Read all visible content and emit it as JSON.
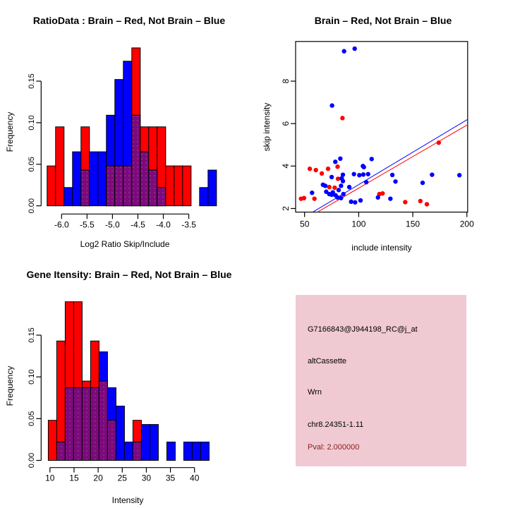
{
  "colors": {
    "red": "#ff0000",
    "blue": "#0000ff",
    "overlap_purple": "#7d0a7d",
    "overlap_dot": "#9b4f96",
    "axis_black": "#000000",
    "pval_darkred": "#8e1b1b",
    "info_bg_pink": "#f7b2c1",
    "info_bg_light": "#e9e1e5"
  },
  "chart_data": [
    {
      "id": "ratio_hist",
      "type": "bar",
      "subtype": "overlaid-histogram",
      "title": "RatioData : Brain – Red, Not Brain – Blue",
      "xlabel": "Log2 Ratio Skip/Include",
      "ylabel": "Frequency",
      "x_ticks": [
        -6.0,
        -5.5,
        -5.0,
        -4.5,
        -4.0,
        -3.5
      ],
      "x_tick_labels": [
        "-6.0",
        "-5.5",
        "-5.0",
        "-4.5",
        "-4.0",
        "-3.5"
      ],
      "y_ticks": [
        0,
        0.05,
        0.1,
        0.15
      ],
      "y_tick_labels": [
        "0.00",
        "0.05",
        "0.10",
        "0.15"
      ],
      "ylim": [
        0,
        0.19
      ],
      "grid": false,
      "legend": "none",
      "bin_start": -6.285,
      "bin_width": 0.1665,
      "series": [
        {
          "name": "Brain (red)",
          "color": "red",
          "values": [
            0.048,
            0.095,
            0,
            0,
            0.095,
            0,
            0,
            0.048,
            0.048,
            0.048,
            0.19,
            0.095,
            0.095,
            0.095,
            0.048,
            0.048,
            0.048,
            0,
            0,
            0
          ]
        },
        {
          "name": "Not Brain (blue)",
          "color": "blue",
          "values": [
            0,
            0,
            0.022,
            0.065,
            0.043,
            0.065,
            0.065,
            0.109,
            0.152,
            0.174,
            0.109,
            0.065,
            0.043,
            0.022,
            0,
            0,
            0,
            0,
            0.022,
            0.043
          ]
        }
      ]
    },
    {
      "id": "scatter",
      "type": "scatter",
      "title": "Brain – Red, Not Brain – Blue",
      "xlabel": "include intensity",
      "ylabel": "skip intensity",
      "x_ticks": [
        50,
        100,
        150,
        200
      ],
      "x_tick_labels": [
        "50",
        "100",
        "150",
        "200"
      ],
      "y_ticks": [
        2,
        4,
        6,
        8
      ],
      "y_tick_labels": [
        "2",
        "4",
        "6",
        "8"
      ],
      "xlim": [
        41.7,
        200.7
      ],
      "ylim": [
        1.83,
        9.87
      ],
      "grid": false,
      "legend": "none",
      "series": [
        {
          "name": "Brain (red)",
          "color": "red",
          "points": [
            [
              46.7,
              2.46
            ],
            [
              49.5,
              2.49
            ],
            [
              54.8,
              3.87
            ],
            [
              59.1,
              2.46
            ],
            [
              60.4,
              3.81
            ],
            [
              65.9,
              3.65
            ],
            [
              71.7,
              3.87
            ],
            [
              72.8,
              3.01
            ],
            [
              77.8,
              2.98
            ],
            [
              80.5,
              3.97
            ],
            [
              80.9,
              3.4
            ],
            [
              85,
              6.26
            ],
            [
              119.1,
              2.68
            ],
            [
              122.1,
              2.71
            ],
            [
              143,
              2.3
            ],
            [
              157,
              2.35
            ],
            [
              163,
              2.2
            ],
            [
              174,
              5.1
            ]
          ]
        },
        {
          "name": "Not Brain (blue)",
          "color": "blue",
          "points": [
            [
              56.9,
              2.74
            ],
            [
              67,
              3.12
            ],
            [
              69.1,
              3.07
            ],
            [
              70,
              2.79
            ],
            [
              72.8,
              2.68
            ],
            [
              75,
              2.65
            ],
            [
              75,
              3.48
            ],
            [
              75.4,
              6.85
            ],
            [
              76.1,
              2.76
            ],
            [
              78.4,
              4.2
            ],
            [
              78.7,
              2.62
            ],
            [
              80.4,
              2.52
            ],
            [
              81.5,
              2.87
            ],
            [
              83,
              4.35
            ],
            [
              83.7,
              2.49
            ],
            [
              83.7,
              3.07
            ],
            [
              84.3,
              3.42
            ],
            [
              85.4,
              3.29
            ],
            [
              85.4,
              3.59
            ],
            [
              85.9,
              2.68
            ],
            [
              86.5,
              9.41
            ],
            [
              91.3,
              3.01
            ],
            [
              93,
              2.32
            ],
            [
              95.6,
              3.62
            ],
            [
              96.3,
              9.53
            ],
            [
              96.7,
              2.29
            ],
            [
              100.6,
              3.57
            ],
            [
              101.7,
              2.38
            ],
            [
              103.9,
              4.0
            ],
            [
              104.3,
              3.6
            ],
            [
              104.8,
              3.95
            ],
            [
              107,
              3.24
            ],
            [
              108.7,
              3.62
            ],
            [
              112,
              4.33
            ],
            [
              117.8,
              2.52
            ],
            [
              129.3,
              2.46
            ],
            [
              131.1,
              3.58
            ],
            [
              134,
              3.27
            ],
            [
              159.1,
              3.21
            ],
            [
              167.8,
              3.59
            ],
            [
              193.1,
              3.57
            ]
          ]
        }
      ],
      "fit_lines": [
        {
          "color": "blue",
          "x1": 57.6,
          "y1": 1.83,
          "x2": 200.7,
          "y2": 6.2
        },
        {
          "color": "red",
          "x1": 61.9,
          "y1": 1.83,
          "x2": 200.7,
          "y2": 5.95
        }
      ]
    },
    {
      "id": "gene_hist",
      "type": "bar",
      "subtype": "overlaid-histogram",
      "title": "Gene Itensity: Brain – Red, Not Brain – Blue",
      "xlabel": "Intensity",
      "ylabel": "Frequency",
      "x_ticks": [
        10,
        15,
        20,
        25,
        30,
        35,
        40
      ],
      "x_tick_labels": [
        "10",
        "15",
        "20",
        "25",
        "30",
        "35",
        "40"
      ],
      "y_ticks": [
        0,
        0.05,
        0.1,
        0.15
      ],
      "y_tick_labels": [
        "0.00",
        "0.05",
        "0.10",
        "0.15"
      ],
      "ylim": [
        0,
        0.19
      ],
      "grid": false,
      "legend": "none",
      "bin_start": 9.65,
      "bin_width": 1.757,
      "series": [
        {
          "name": "Brain (red)",
          "color": "red",
          "values": [
            0.048,
            0.143,
            0.19,
            0.19,
            0.095,
            0.143,
            0.095,
            0.048,
            0,
            0,
            0.048,
            0,
            0,
            0,
            0,
            0,
            0,
            0,
            0
          ]
        },
        {
          "name": "Not Brain (blue)",
          "color": "blue",
          "values": [
            0,
            0.022,
            0.087,
            0.087,
            0.087,
            0.087,
            0.13,
            0.087,
            0.065,
            0.022,
            0.022,
            0.043,
            0.043,
            0,
            0.022,
            0,
            0.022,
            0.022,
            0.022
          ]
        }
      ]
    }
  ],
  "info_panel": {
    "probe_id": "G7166843@J944198_RC@j_at",
    "event_type": "altCassette",
    "gene": "Wrn",
    "locus": "chr8.24351-1.11",
    "pval_text": "Pval: 2.000000"
  }
}
